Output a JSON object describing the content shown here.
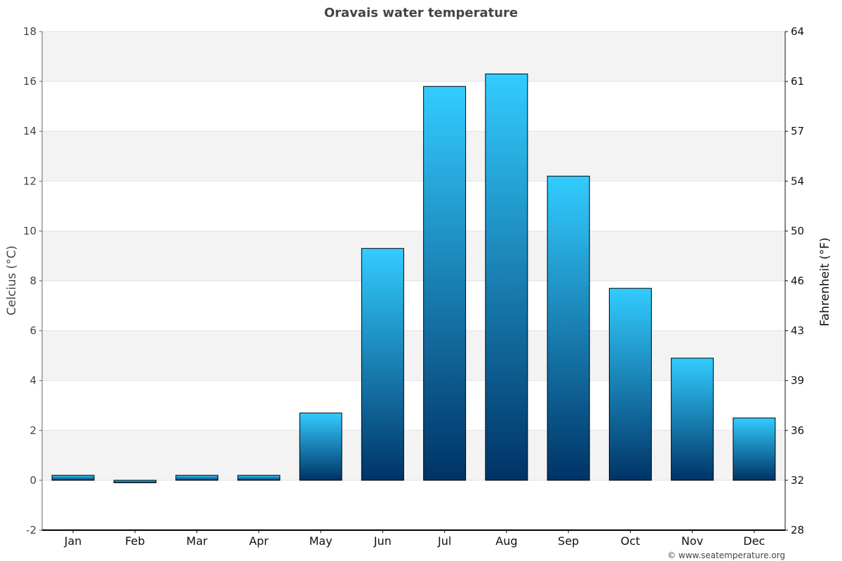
{
  "chart_data": {
    "type": "bar",
    "title": "Oravais water temperature",
    "ylabel": "Celcius (°C)",
    "ylabel_right": "Fahrenheit (°F)",
    "categories": [
      "Jan",
      "Feb",
      "Mar",
      "Apr",
      "May",
      "Jun",
      "Jul",
      "Aug",
      "Sep",
      "Oct",
      "Nov",
      "Dec"
    ],
    "values": [
      0.2,
      -0.1,
      0.2,
      0.2,
      2.7,
      9.3,
      15.8,
      16.3,
      12.2,
      7.7,
      4.9,
      2.5
    ],
    "ylim": [
      -2,
      18
    ],
    "yticks": [
      "18",
      "16",
      "14",
      "12",
      "10",
      "8",
      "6",
      "4",
      "2",
      "0",
      "-2"
    ],
    "yticks_right": [
      "64",
      "61",
      "57",
      "54",
      "50",
      "46",
      "43",
      "39",
      "36",
      "32",
      "28"
    ],
    "grid": true,
    "bar_color_top": "#33ccff",
    "bar_color_bottom": "#003366",
    "credit": "© www.seatemperature.org"
  }
}
